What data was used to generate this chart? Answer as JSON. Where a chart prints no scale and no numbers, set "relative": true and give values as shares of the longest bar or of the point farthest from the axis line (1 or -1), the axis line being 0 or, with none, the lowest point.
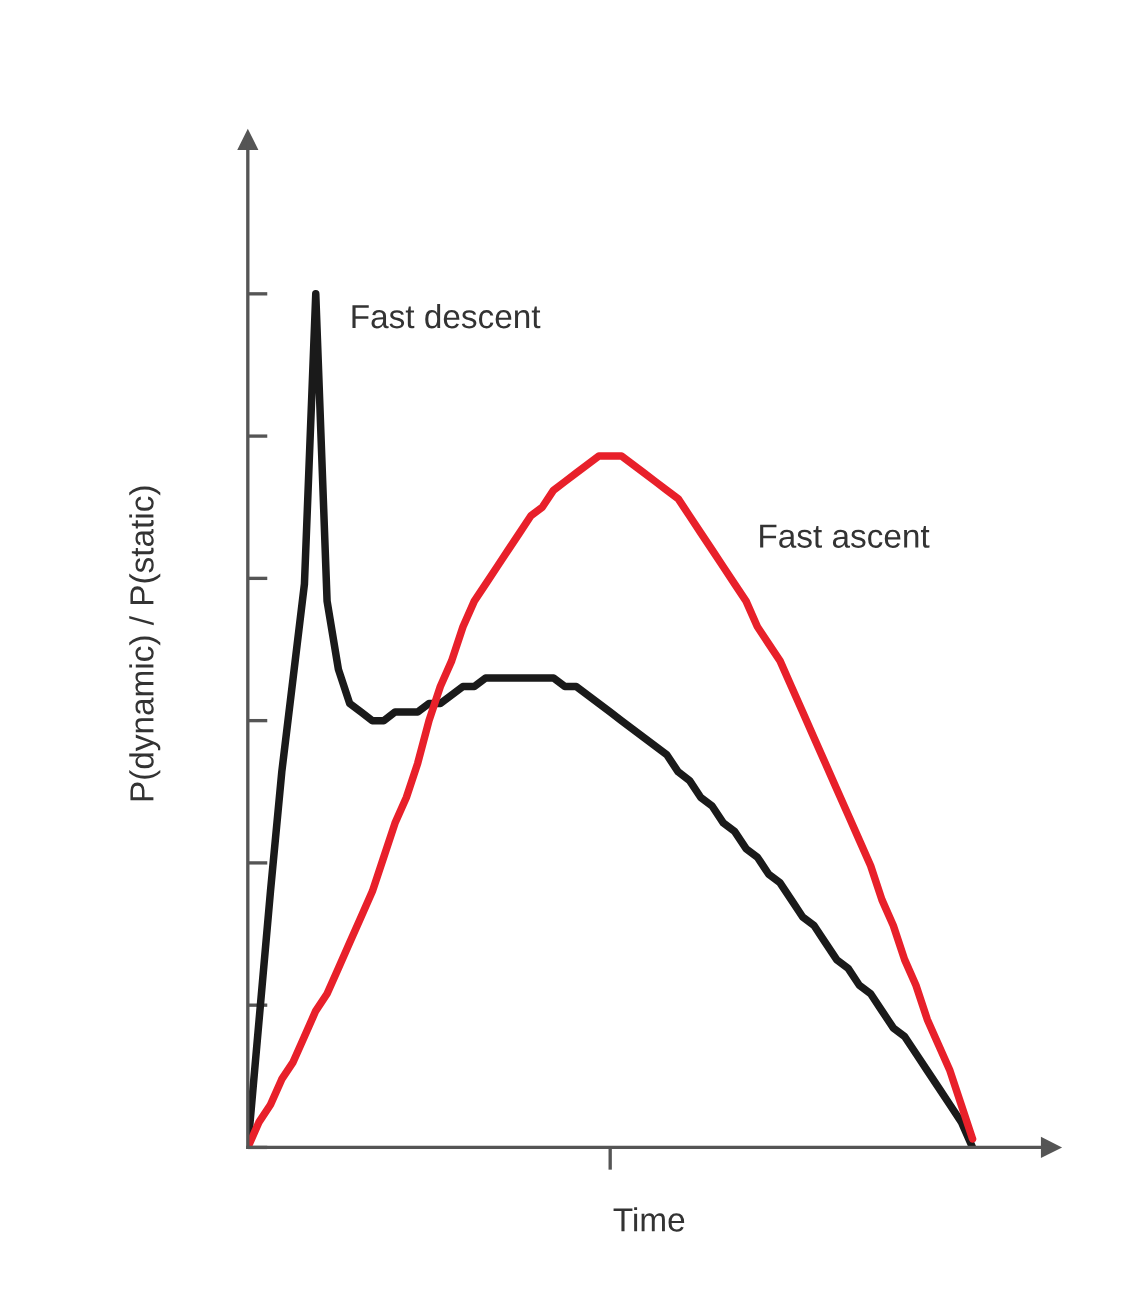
{
  "chart_data": {
    "type": "line",
    "relative": true,
    "xlabel": "Time",
    "ylabel": "P(dynamic) / P(static)",
    "legend": false,
    "grid": false,
    "categories": [
      null,
      null,
      null,
      null,
      null,
      null,
      null,
      null,
      null,
      null,
      null,
      null,
      null,
      null,
      null,
      null,
      null,
      null,
      null,
      null,
      null,
      null,
      null,
      null,
      null,
      null,
      null,
      null,
      null,
      null,
      null,
      null,
      null,
      null,
      null,
      null,
      null,
      null,
      null,
      null,
      null,
      null,
      null,
      null,
      null,
      null,
      null,
      null,
      null,
      null,
      null,
      null,
      null,
      null,
      null,
      null,
      null,
      null,
      null,
      null,
      null,
      null,
      null,
      null,
      null
    ],
    "series": [
      {
        "name": "Fast descent",
        "color": "#1a1a1a",
        "values": [
          0,
          0.15,
          0.3,
          0.44,
          0.55,
          0.66,
          1,
          0.64,
          0.56,
          0.52,
          0.51,
          0.5,
          0.5,
          0.51,
          0.51,
          0.51,
          0.52,
          0.52,
          0.53,
          0.54,
          0.54,
          0.55,
          0.55,
          0.55,
          0.55,
          0.55,
          0.55,
          0.55,
          0.54,
          0.54,
          0.53,
          0.52,
          0.51,
          0.5,
          0.49,
          0.48,
          0.47,
          0.46,
          0.44,
          0.43,
          0.41,
          0.4,
          0.38,
          0.37,
          0.35,
          0.34,
          0.32,
          0.31,
          0.29,
          0.27,
          0.26,
          0.24,
          0.22,
          0.21,
          0.19,
          0.18,
          0.16,
          0.14,
          0.13,
          0.11,
          0.09,
          0.07,
          0.05,
          0.03,
          0
        ]
      },
      {
        "name": "Fast ascent",
        "color": "#e8202a",
        "values": [
          0,
          0.03,
          0.05,
          0.08,
          0.1,
          0.13,
          0.16,
          0.18,
          0.21,
          0.24,
          0.27,
          0.3,
          0.34,
          0.38,
          0.41,
          0.45,
          0.5,
          0.54,
          0.57,
          0.61,
          0.64,
          0.66,
          0.68,
          0.7,
          0.72,
          0.74,
          0.75,
          0.77,
          0.78,
          0.79,
          0.8,
          0.81,
          0.81,
          0.81,
          0.8,
          0.79,
          0.78,
          0.77,
          0.76,
          0.74,
          0.72,
          0.7,
          0.68,
          0.66,
          0.64,
          0.61,
          0.59,
          0.57,
          0.54,
          0.51,
          0.48,
          0.45,
          0.42,
          0.39,
          0.36,
          0.33,
          0.29,
          0.26,
          0.22,
          0.19,
          0.15,
          0.12,
          0.09,
          0.05,
          0.01
        ]
      }
    ]
  }
}
